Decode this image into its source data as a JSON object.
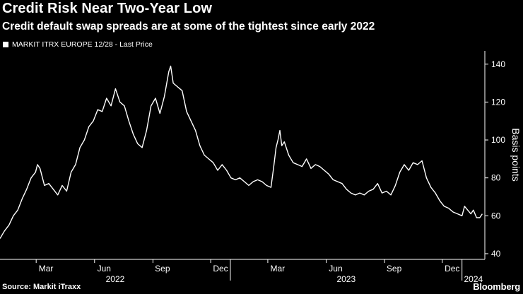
{
  "title": "Credit Risk Near Two-Year Low",
  "subtitle": "Credit default swap spreads are at some of the tightest since early 2022",
  "source": "Source: Markit iTraxx",
  "brand": "Bloomberg",
  "colors": {
    "background": "#000000",
    "line": "#ffffff",
    "text": "#ffffff"
  },
  "chart_data": {
    "type": "line",
    "series": [
      {
        "name": "MARKIT ITRX EUROPE 12/28 - Last Price",
        "points": [
          [
            "2022-01-03",
            48
          ],
          [
            "2022-01-10",
            52
          ],
          [
            "2022-01-17",
            55
          ],
          [
            "2022-01-24",
            60
          ],
          [
            "2022-01-31",
            63
          ],
          [
            "2022-02-07",
            69
          ],
          [
            "2022-02-14",
            74
          ],
          [
            "2022-02-21",
            80
          ],
          [
            "2022-02-28",
            83
          ],
          [
            "2022-03-03",
            87
          ],
          [
            "2022-03-07",
            85
          ],
          [
            "2022-03-14",
            76
          ],
          [
            "2022-03-21",
            77
          ],
          [
            "2022-03-28",
            74
          ],
          [
            "2022-04-04",
            71
          ],
          [
            "2022-04-11",
            76
          ],
          [
            "2022-04-18",
            73
          ],
          [
            "2022-04-25",
            83
          ],
          [
            "2022-05-02",
            87
          ],
          [
            "2022-05-09",
            96
          ],
          [
            "2022-05-16",
            100
          ],
          [
            "2022-05-23",
            107
          ],
          [
            "2022-05-30",
            110
          ],
          [
            "2022-06-06",
            116
          ],
          [
            "2022-06-13",
            115
          ],
          [
            "2022-06-20",
            122
          ],
          [
            "2022-06-27",
            118
          ],
          [
            "2022-07-04",
            127
          ],
          [
            "2022-07-11",
            120
          ],
          [
            "2022-07-18",
            118
          ],
          [
            "2022-07-25",
            110
          ],
          [
            "2022-08-01",
            103
          ],
          [
            "2022-08-08",
            98
          ],
          [
            "2022-08-15",
            96
          ],
          [
            "2022-08-22",
            105
          ],
          [
            "2022-08-29",
            118
          ],
          [
            "2022-09-05",
            122
          ],
          [
            "2022-09-12",
            114
          ],
          [
            "2022-09-19",
            123
          ],
          [
            "2022-09-26",
            136
          ],
          [
            "2022-09-29",
            139
          ],
          [
            "2022-10-03",
            130
          ],
          [
            "2022-10-10",
            128
          ],
          [
            "2022-10-17",
            126
          ],
          [
            "2022-10-24",
            115
          ],
          [
            "2022-10-31",
            110
          ],
          [
            "2022-11-07",
            105
          ],
          [
            "2022-11-14",
            97
          ],
          [
            "2022-11-21",
            92
          ],
          [
            "2022-11-28",
            90
          ],
          [
            "2022-12-05",
            88
          ],
          [
            "2022-12-12",
            84
          ],
          [
            "2022-12-19",
            87
          ],
          [
            "2022-12-26",
            84
          ],
          [
            "2023-01-02",
            80
          ],
          [
            "2023-01-09",
            79
          ],
          [
            "2023-01-16",
            80
          ],
          [
            "2023-01-23",
            78
          ],
          [
            "2023-01-30",
            76
          ],
          [
            "2023-02-06",
            78
          ],
          [
            "2023-02-13",
            79
          ],
          [
            "2023-02-20",
            78
          ],
          [
            "2023-02-27",
            76
          ],
          [
            "2023-03-06",
            75
          ],
          [
            "2023-03-10",
            85
          ],
          [
            "2023-03-14",
            96
          ],
          [
            "2023-03-17",
            100
          ],
          [
            "2023-03-20",
            105
          ],
          [
            "2023-03-23",
            97
          ],
          [
            "2023-03-27",
            99
          ],
          [
            "2023-04-03",
            92
          ],
          [
            "2023-04-10",
            88
          ],
          [
            "2023-04-17",
            87
          ],
          [
            "2023-04-24",
            86
          ],
          [
            "2023-05-01",
            90
          ],
          [
            "2023-05-08",
            85
          ],
          [
            "2023-05-15",
            87
          ],
          [
            "2023-05-22",
            86
          ],
          [
            "2023-05-29",
            84
          ],
          [
            "2023-06-05",
            82
          ],
          [
            "2023-06-12",
            79
          ],
          [
            "2023-06-19",
            78
          ],
          [
            "2023-06-26",
            77
          ],
          [
            "2023-07-03",
            74
          ],
          [
            "2023-07-10",
            72
          ],
          [
            "2023-07-17",
            71
          ],
          [
            "2023-07-24",
            72
          ],
          [
            "2023-07-31",
            71
          ],
          [
            "2023-08-07",
            73
          ],
          [
            "2023-08-14",
            74
          ],
          [
            "2023-08-21",
            77
          ],
          [
            "2023-08-28",
            72
          ],
          [
            "2023-09-04",
            73
          ],
          [
            "2023-09-11",
            71
          ],
          [
            "2023-09-18",
            76
          ],
          [
            "2023-09-25",
            83
          ],
          [
            "2023-10-02",
            87
          ],
          [
            "2023-10-09",
            84
          ],
          [
            "2023-10-16",
            88
          ],
          [
            "2023-10-23",
            87
          ],
          [
            "2023-10-30",
            89
          ],
          [
            "2023-11-06",
            80
          ],
          [
            "2023-11-13",
            75
          ],
          [
            "2023-11-20",
            72
          ],
          [
            "2023-11-27",
            68
          ],
          [
            "2023-12-04",
            65
          ],
          [
            "2023-12-11",
            64
          ],
          [
            "2023-12-18",
            62
          ],
          [
            "2023-12-25",
            61
          ],
          [
            "2024-01-01",
            60
          ],
          [
            "2024-01-05",
            65
          ],
          [
            "2024-01-10",
            63
          ],
          [
            "2024-01-15",
            61
          ],
          [
            "2024-01-19",
            63
          ],
          [
            "2024-01-24",
            59
          ],
          [
            "2024-01-29",
            59
          ],
          [
            "2024-02-02",
            61
          ]
        ]
      }
    ],
    "x_range": [
      "2022-01-03",
      "2024-02-06"
    ],
    "month_ticks": [
      "Mar",
      "Jun",
      "Sep",
      "Dec",
      "Mar",
      "Jun",
      "Sep",
      "Dec"
    ],
    "year_labels": [
      "2022",
      "2023",
      "2024"
    ],
    "ylabel": "Basis points",
    "yticks": [
      40,
      60,
      80,
      100,
      120,
      140
    ],
    "ylim": [
      37,
      147
    ],
    "y_axis_side": "right",
    "legend_position": "top-left",
    "grid": false
  }
}
